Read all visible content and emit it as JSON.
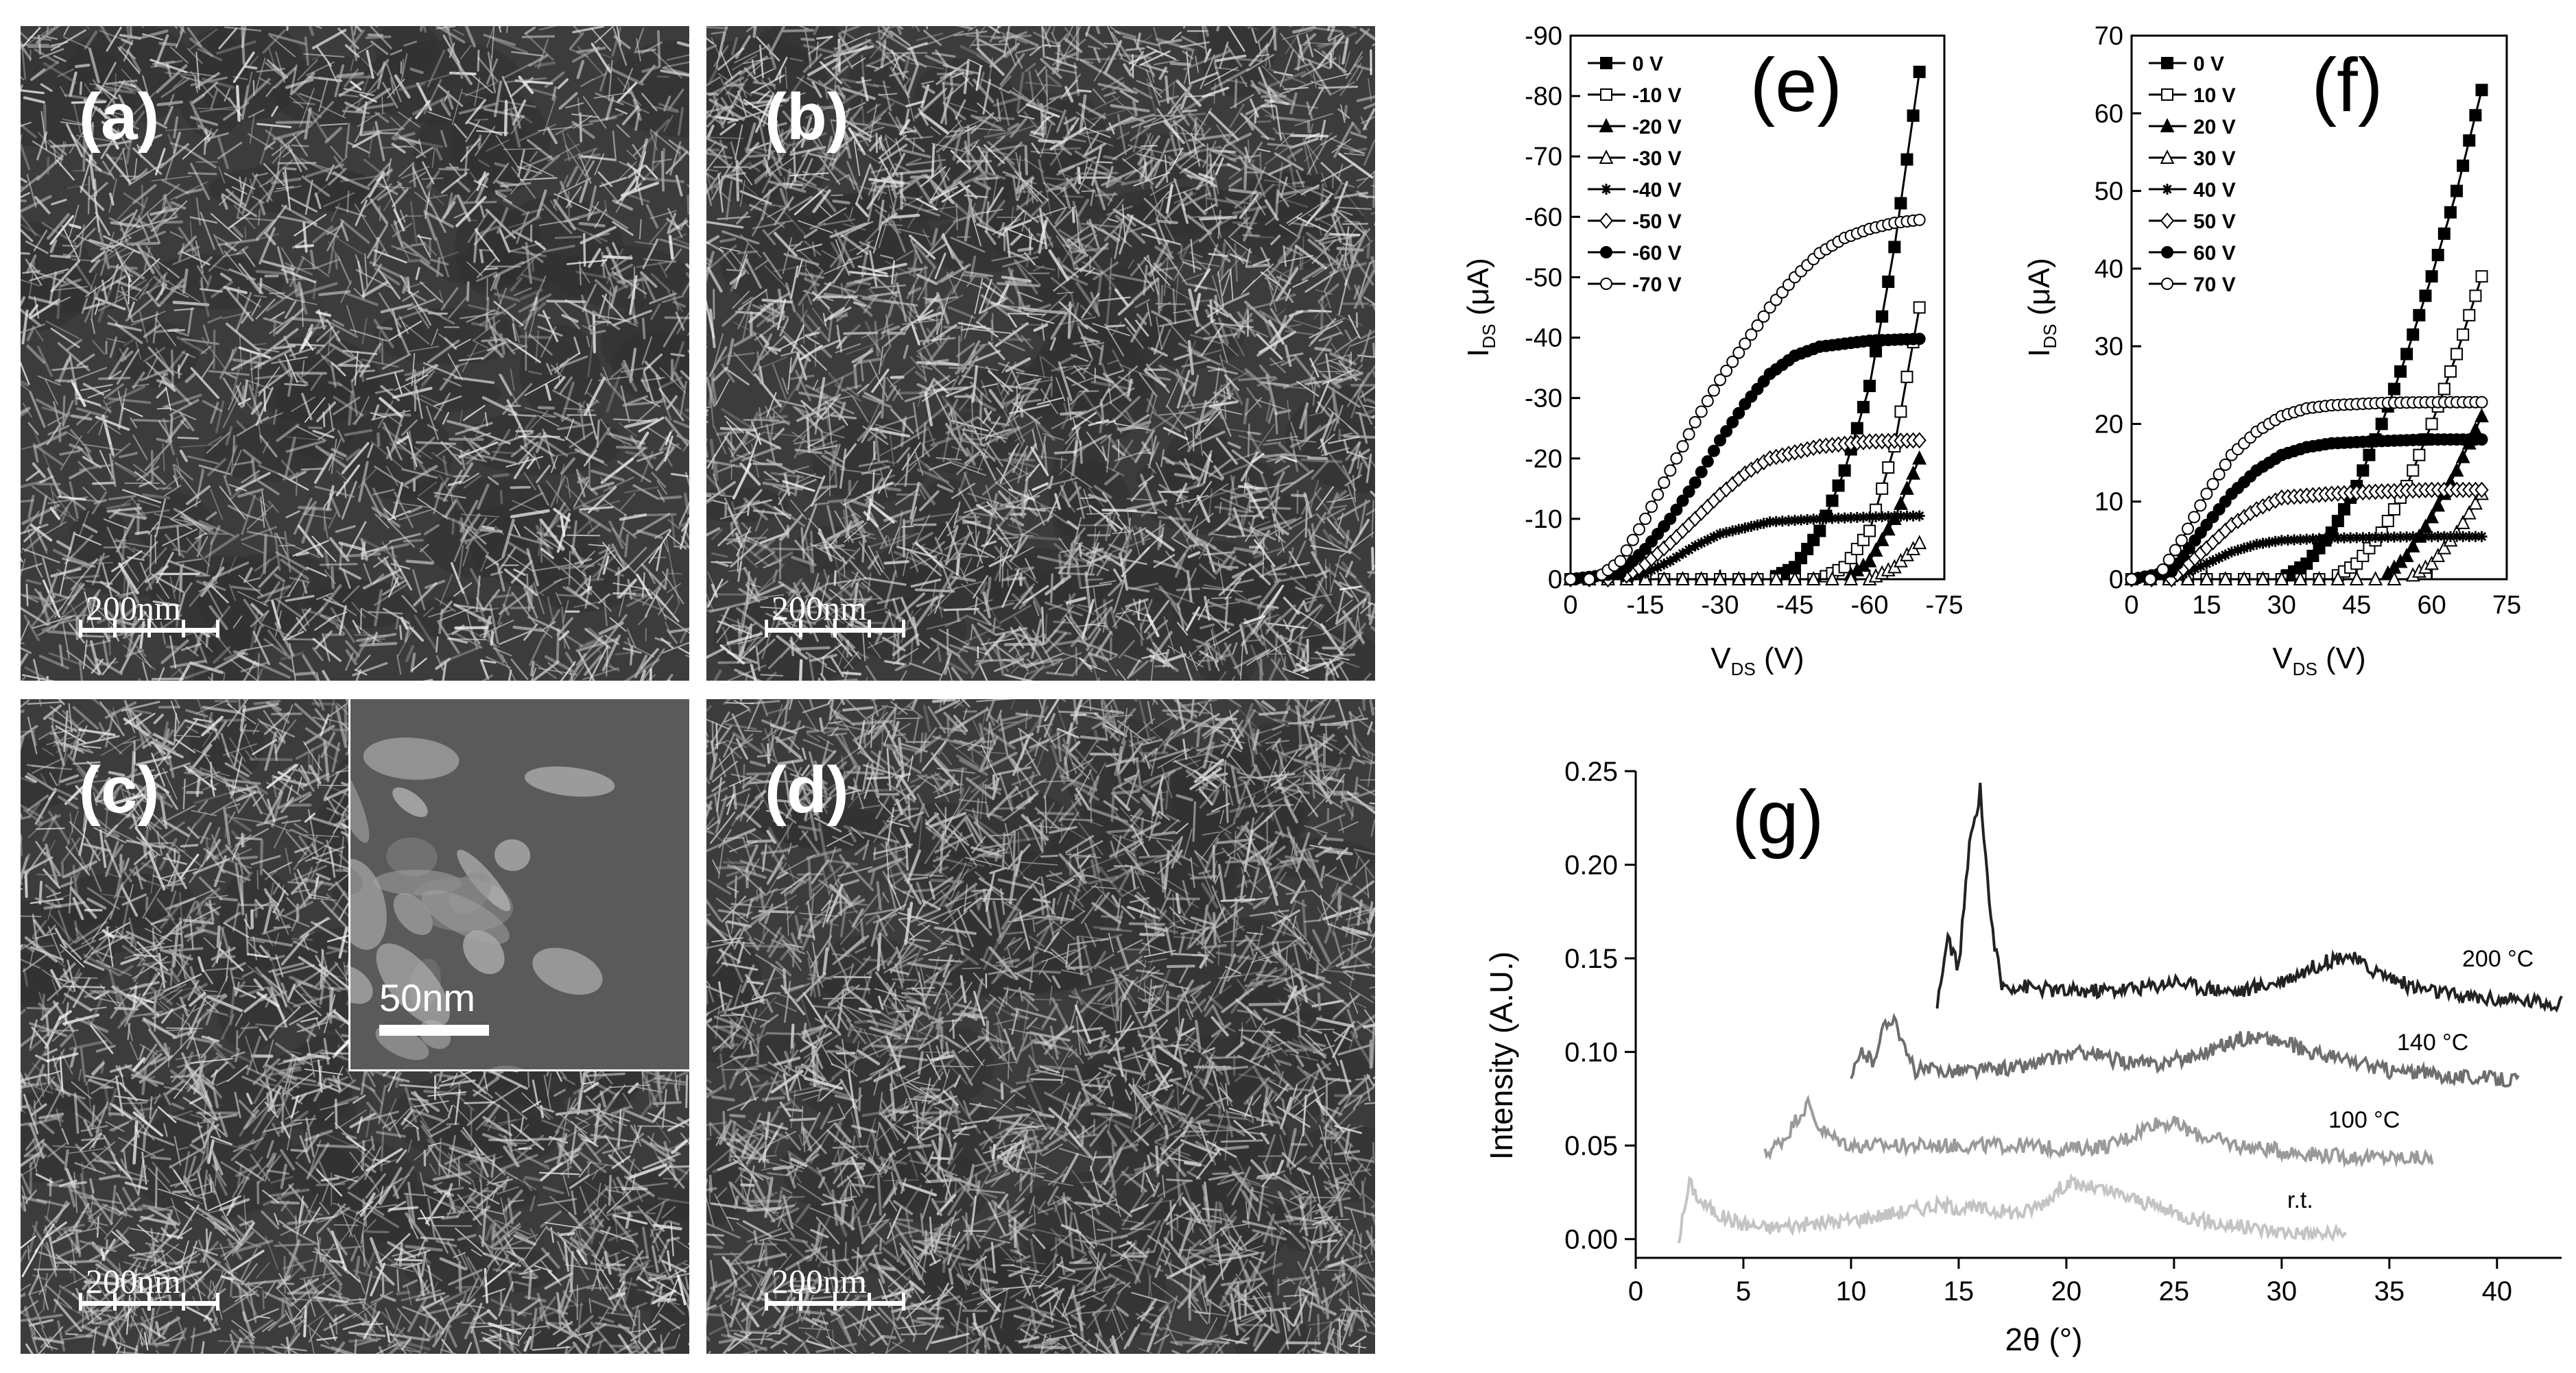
{
  "panels": {
    "a": {
      "label": "(a)",
      "scale": "200nm"
    },
    "b": {
      "label": "(b)",
      "scale": "200nm"
    },
    "c": {
      "label": "(c)",
      "scale": "200nm",
      "inset_scale": "50nm"
    },
    "d": {
      "label": "(d)",
      "scale": "200nm"
    }
  },
  "chart_data": [
    {
      "panel": "(e)",
      "type": "line",
      "xlabel": "V_DS (V)",
      "ylabel": "I_DS (μA)",
      "xlim": [
        0,
        -75
      ],
      "ylim": [
        0,
        -90
      ],
      "xticks": [
        "0",
        "-15",
        "-30",
        "-45",
        "-60",
        "-75"
      ],
      "yticks": [
        "0",
        "-10",
        "-20",
        "-30",
        "-40",
        "-50",
        "-60",
        "-70",
        "-80",
        "-90"
      ],
      "legend_position": "top-left",
      "series": [
        {
          "name": "0 V",
          "marker": "square-filled",
          "x": [
            0,
            -40,
            -45,
            -50,
            -55,
            -60,
            -65,
            -70
          ],
          "y": [
            0,
            0,
            -2,
            -8,
            -18,
            -32,
            -55,
            -84
          ]
        },
        {
          "name": "-10 V",
          "marker": "square-open",
          "x": [
            0,
            -50,
            -55,
            -60,
            -65,
            -70
          ],
          "y": [
            0,
            0,
            -2,
            -8,
            -22,
            -45
          ]
        },
        {
          "name": "-20 V",
          "marker": "triangle-filled",
          "x": [
            0,
            -55,
            -60,
            -65,
            -70
          ],
          "y": [
            0,
            0,
            -3,
            -10,
            -20
          ]
        },
        {
          "name": "-30 V",
          "marker": "triangle-open",
          "x": [
            0,
            -60,
            -65,
            -70
          ],
          "y": [
            0,
            0,
            -2,
            -6
          ]
        },
        {
          "name": "-40 V",
          "marker": "star",
          "x": [
            0,
            -10,
            -15,
            -20,
            -25,
            -30,
            -40,
            -50,
            -60,
            -70
          ],
          "y": [
            0,
            0,
            -1,
            -3,
            -5.5,
            -7.5,
            -9.5,
            -10,
            -10.3,
            -10.5
          ]
        },
        {
          "name": "-50 V",
          "marker": "diamond-open",
          "x": [
            0,
            -10,
            -15,
            -20,
            -25,
            -30,
            -35,
            -40,
            -50,
            -60,
            -70
          ],
          "y": [
            0,
            0,
            -2.5,
            -6,
            -10,
            -14,
            -17.5,
            -20,
            -22,
            -22.8,
            -23
          ]
        },
        {
          "name": "-60 V",
          "marker": "circle-filled",
          "x": [
            0,
            -10,
            -15,
            -20,
            -25,
            -30,
            -35,
            -40,
            -45,
            -50,
            -60,
            -70
          ],
          "y": [
            0,
            -1,
            -5,
            -10,
            -16,
            -23,
            -29,
            -34,
            -37,
            -38.5,
            -39.5,
            -39.8
          ]
        },
        {
          "name": "-70 V",
          "marker": "circle-open",
          "x": [
            0,
            -5,
            -10,
            -15,
            -20,
            -25,
            -30,
            -35,
            -40,
            -45,
            -50,
            -55,
            -60,
            -65,
            -70
          ],
          "y": [
            0,
            0,
            -3,
            -10,
            -18,
            -26,
            -33,
            -39,
            -45,
            -50,
            -54,
            -56.5,
            -58,
            -59,
            -59.5
          ]
        }
      ]
    },
    {
      "panel": "(f)",
      "type": "line",
      "xlabel": "V_DS (V)",
      "ylabel": "I_DS (μA)",
      "xlim": [
        0,
        75
      ],
      "ylim": [
        0,
        70
      ],
      "xticks": [
        "0",
        "15",
        "30",
        "45",
        "60",
        "75"
      ],
      "yticks": [
        "0",
        "10",
        "20",
        "30",
        "40",
        "50",
        "60",
        "70"
      ],
      "legend_position": "top-left",
      "series": [
        {
          "name": "0 V",
          "marker": "square-filled",
          "x": [
            0,
            30,
            35,
            40,
            45,
            50,
            55,
            60,
            65,
            70
          ],
          "y": [
            0,
            0,
            2,
            6,
            12,
            20,
            29,
            39,
            50,
            63
          ]
        },
        {
          "name": "10 V",
          "marker": "square-open",
          "x": [
            0,
            40,
            45,
            50,
            55,
            60,
            65,
            70
          ],
          "y": [
            0,
            0,
            2,
            6,
            12,
            20,
            29,
            39
          ]
        },
        {
          "name": "20 V",
          "marker": "triangle-filled",
          "x": [
            0,
            50,
            55,
            60,
            65,
            70
          ],
          "y": [
            0,
            0,
            3,
            8,
            14,
            21
          ]
        },
        {
          "name": "30 V",
          "marker": "triangle-open",
          "x": [
            0,
            55,
            60,
            65,
            70
          ],
          "y": [
            0,
            0,
            2,
            6,
            11
          ]
        },
        {
          "name": "40 V",
          "marker": "star",
          "x": [
            0,
            8,
            15,
            20,
            25,
            30,
            40,
            50,
            60,
            70
          ],
          "y": [
            0,
            0,
            2,
            3.5,
            4.5,
            5,
            5.3,
            5.4,
            5.5,
            5.5
          ]
        },
        {
          "name": "50 V",
          "marker": "diamond-open",
          "x": [
            0,
            8,
            15,
            20,
            25,
            30,
            40,
            50,
            60,
            70
          ],
          "y": [
            0,
            0,
            4,
            7,
            9,
            10.5,
            11,
            11.3,
            11.5,
            11.5
          ]
        },
        {
          "name": "60 V",
          "marker": "circle-filled",
          "x": [
            0,
            8,
            15,
            20,
            25,
            30,
            35,
            40,
            50,
            60,
            70
          ],
          "y": [
            0,
            1,
            7,
            11,
            14,
            16,
            17,
            17.5,
            17.8,
            18,
            18
          ]
        },
        {
          "name": "70 V",
          "marker": "circle-open",
          "x": [
            0,
            5,
            10,
            15,
            20,
            25,
            30,
            35,
            40,
            50,
            60,
            70
          ],
          "y": [
            0,
            0,
            5,
            11,
            16,
            19,
            21,
            22,
            22.4,
            22.7,
            22.8,
            22.8
          ]
        }
      ]
    },
    {
      "panel": "(g)",
      "type": "line",
      "xlabel": "2θ (°)",
      "ylabel": "Intensity (A.U.)",
      "xlim": [
        0,
        43
      ],
      "ylim": [
        -0.01,
        0.25
      ],
      "xticks": [
        "0",
        "5",
        "10",
        "15",
        "20",
        "25",
        "30",
        "35",
        "40"
      ],
      "yticks": [
        "0.00",
        "0.05",
        "0.10",
        "0.15",
        "0.20",
        "0.25"
      ],
      "series": [
        {
          "name": "r.t.",
          "color": "#c4c4c4",
          "x": [
            2,
            2.5,
            3,
            4,
            5,
            6,
            8,
            10,
            12,
            14,
            16,
            18,
            19,
            20,
            21,
            22,
            23,
            25,
            27,
            30,
            33
          ],
          "y": [
            0.0,
            0.03,
            0.02,
            0.012,
            0.008,
            0.006,
            0.008,
            0.01,
            0.014,
            0.018,
            0.016,
            0.014,
            0.02,
            0.03,
            0.028,
            0.025,
            0.022,
            0.014,
            0.008,
            0.004,
            0.002
          ]
        },
        {
          "name": "100 °C",
          "color": "#9a9a9a",
          "x": [
            6,
            7,
            7.5,
            8,
            8.5,
            9,
            10,
            12,
            14,
            16,
            18,
            20,
            22,
            23,
            24,
            25,
            26,
            28,
            30,
            33,
            37
          ],
          "y": [
            0.045,
            0.055,
            0.065,
            0.072,
            0.06,
            0.055,
            0.05,
            0.05,
            0.05,
            0.05,
            0.05,
            0.048,
            0.05,
            0.055,
            0.062,
            0.062,
            0.056,
            0.05,
            0.047,
            0.044,
            0.043
          ]
        },
        {
          "name": "140 °C",
          "color": "#6e6e6e",
          "x": [
            10,
            10.5,
            11,
            11.5,
            12,
            12.5,
            13,
            14,
            16,
            18,
            20,
            21,
            22,
            24,
            26,
            28,
            29,
            30,
            32,
            35,
            38,
            41
          ],
          "y": [
            0.085,
            0.1,
            0.095,
            0.112,
            0.12,
            0.1,
            0.09,
            0.09,
            0.09,
            0.092,
            0.098,
            0.1,
            0.096,
            0.093,
            0.098,
            0.107,
            0.108,
            0.105,
            0.098,
            0.09,
            0.087,
            0.085
          ]
        },
        {
          "name": "200 °C",
          "color": "#222222",
          "x": [
            14,
            14.5,
            15,
            15.5,
            16,
            16.5,
            17,
            18,
            20,
            22,
            24,
            25,
            26,
            28,
            30,
            32,
            33,
            34,
            36,
            38,
            40,
            43
          ],
          "y": [
            0.125,
            0.16,
            0.145,
            0.21,
            0.24,
            0.17,
            0.135,
            0.135,
            0.132,
            0.133,
            0.135,
            0.138,
            0.135,
            0.132,
            0.138,
            0.148,
            0.152,
            0.145,
            0.135,
            0.13,
            0.128,
            0.126
          ]
        }
      ]
    }
  ],
  "chart_text": {
    "e_panel": "(e)",
    "f_panel": "(f)",
    "g_panel": "(g)",
    "e_xlabel_main": "V",
    "e_xlabel_sub": "DS",
    "e_xlabel_unit": " (V)",
    "e_ylabel_main": "I",
    "e_ylabel_sub": "DS",
    "e_ylabel_unit": " (μA)",
    "f_xlabel_main": "V",
    "f_xlabel_sub": "DS",
    "f_xlabel_unit": " (V)",
    "f_ylabel_main": "I",
    "f_ylabel_sub": "DS",
    "f_ylabel_unit": " (μA)",
    "g_xlabel": "2θ (°)",
    "g_ylabel": "Intensity (A.U.)",
    "g_labels": [
      {
        "text": "200 °C",
        "series": 3
      },
      {
        "text": "140 °C",
        "series": 2
      },
      {
        "text": "100 °C",
        "series": 1
      },
      {
        "text": "r.t.",
        "series": 0
      }
    ]
  },
  "colors": {
    "sem_bg": "#3c3c3c",
    "sem_fiber": "#d6d6d6",
    "axis": "#000000"
  }
}
